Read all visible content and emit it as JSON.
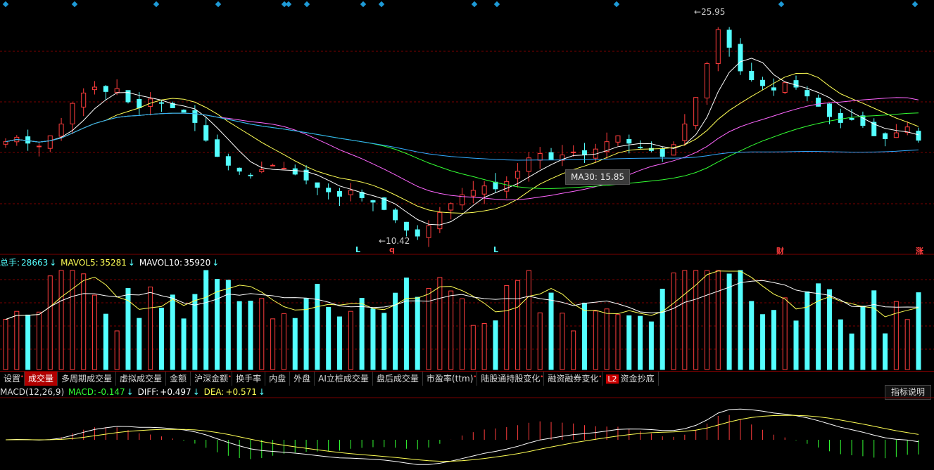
{
  "colors": {
    "up": "#ff3d3d",
    "down": "#54ffff",
    "ma5": "#ffffff",
    "ma10": "#ffff55",
    "ma20": "#ff66ff",
    "ma30": "#33ff33",
    "ma60": "#33aaff",
    "grid": "#7a0000"
  },
  "price_chart": {
    "max_label": "25.95",
    "min_label": "10.42",
    "tooltip": "MA30: 15.85",
    "markers": [
      {
        "text": "L",
        "color": "#54ffff"
      },
      {
        "text": "q",
        "color": "#ff3d3d"
      },
      {
        "text": "L",
        "color": "#54ffff"
      },
      {
        "text": "财",
        "color": "#ff3d3d"
      },
      {
        "text": "涨",
        "color": "#ff3d3d"
      }
    ]
  },
  "volume_legend": {
    "total_label": "总手:",
    "total_value": "28663",
    "mavol5_label": "MAVOL5:",
    "mavol5_value": "35281",
    "mavol10_label": "MAVOL10:",
    "mavol10_value": "35920"
  },
  "tabs": [
    "设置",
    "成交量",
    "多周期成交量",
    "虚拟成交量",
    "金额",
    "沪深金额",
    "换手率",
    "内盘",
    "外盘",
    "AI立桩成交量",
    "盘后成交量",
    "市盈率(ttm)",
    "陆股通持股变化",
    "融资融券变化",
    "资金抄底"
  ],
  "tabs_dot": [
    true,
    false,
    false,
    false,
    false,
    true,
    false,
    false,
    false,
    false,
    false,
    true,
    true,
    true,
    false
  ],
  "l2_badge": "L2",
  "macd_legend": {
    "name": "MACD(12,26,9)",
    "macd_label": "MACD:",
    "macd_value": "-0.147",
    "diff_label": "DIFF:",
    "diff_value": "+0.497",
    "dea_label": "DEA:",
    "dea_value": "+0.571"
  },
  "help_button": "指标说明",
  "arrow": "↓",
  "chart_data": [
    {
      "type": "candlestick",
      "price_max": 25.95,
      "price_min": 10.42,
      "ma_labels": [
        "MA30"
      ],
      "closes": [
        17.2,
        17.5,
        17.1,
        16.9,
        17.6,
        18.4,
        19.8,
        20.5,
        20.9,
        20.6,
        20.8,
        19.9,
        19.5,
        20.1,
        19.8,
        19.5,
        19.2,
        18.5,
        17.3,
        16.2,
        15.6,
        15.2,
        14.9,
        15.3,
        15.6,
        15.4,
        15.0,
        14.6,
        14.1,
        13.8,
        13.5,
        13.9,
        13.4,
        13.1,
        12.6,
        11.9,
        11.2,
        10.8,
        11.5,
        12.4,
        13.0,
        13.6,
        13.9,
        14.2,
        14.0,
        14.5,
        15.2,
        16.1,
        16.4,
        16.0,
        16.3,
        16.5,
        16.3,
        16.7,
        17.2,
        17.6,
        17.1,
        16.8,
        16.6,
        16.2,
        17.0,
        18.4,
        20.2,
        22.5,
        24.8,
        23.6,
        22.0,
        21.4,
        21.0,
        20.7,
        21.2,
        20.9,
        20.3,
        19.6,
        18.9,
        18.5,
        18.7,
        18.3,
        17.6,
        17.4,
        17.8,
        18.2,
        17.3
      ]
    },
    {
      "type": "bar",
      "title": "",
      "series": [
        {
          "name": "MAVOL5",
          "last": 35281
        },
        {
          "name": "MAVOL10",
          "last": 35920
        }
      ],
      "last_value": 28663
    },
    {
      "type": "line",
      "series": [
        {
          "name": "DIFF",
          "last": 0.497
        },
        {
          "name": "DEA",
          "last": 0.571
        }
      ],
      "macd_last": -0.147
    }
  ]
}
